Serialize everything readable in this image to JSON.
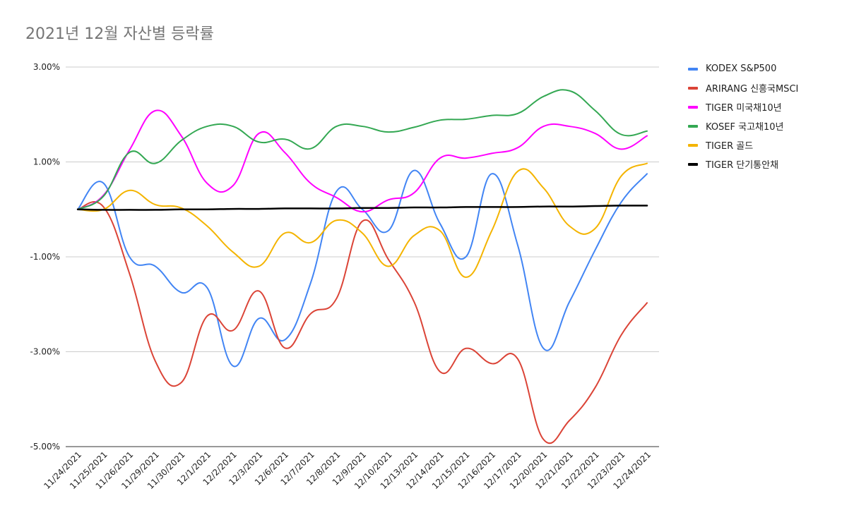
{
  "title": "2021년 12월 자산별 등락률",
  "chart_data": {
    "type": "line",
    "title": "2021년 12월 자산별 등락률",
    "xlabel": "",
    "ylabel": "",
    "ylim": [
      -5,
      3
    ],
    "yticks": [
      3,
      1,
      -1,
      -3,
      -5
    ],
    "ytick_labels": [
      "3.00%",
      "1.00%",
      "-1.00%",
      "-3.00%",
      "-5.00%"
    ],
    "grid": true,
    "legend_position": "right",
    "categories": [
      "11/24/2021",
      "11/25/2021",
      "11/26/2021",
      "11/29/2021",
      "11/30/2021",
      "12/1/2021",
      "12/2/2021",
      "12/3/2021",
      "12/6/2021",
      "12/7/2021",
      "12/8/2021",
      "12/9/2021",
      "12/10/2021",
      "12/13/2021",
      "12/14/2021",
      "12/15/2021",
      "12/16/2021",
      "12/17/2021",
      "12/20/2021",
      "12/21/2021",
      "12/22/2021",
      "12/23/2021",
      "12/24/2021"
    ],
    "series": [
      {
        "name": "KODEX S&P500",
        "color": "#4285f4",
        "values": [
          0,
          0.55,
          -1.0,
          -1.2,
          -1.75,
          -1.65,
          -3.3,
          -2.3,
          -2.75,
          -1.55,
          0.38,
          0.0,
          -0.45,
          0.82,
          -0.3,
          -1.0,
          0.75,
          -0.75,
          -2.93,
          -1.95,
          -0.85,
          0.15,
          0.75
        ]
      },
      {
        "name": "ARIRANG 신흥국MSCI",
        "color": "#db4437",
        "values": [
          0,
          0.05,
          -1.35,
          -3.2,
          -3.65,
          -2.25,
          -2.55,
          -1.72,
          -2.92,
          -2.2,
          -1.88,
          -0.25,
          -1.05,
          -1.95,
          -3.42,
          -2.93,
          -3.25,
          -3.15,
          -4.85,
          -4.45,
          -3.75,
          -2.65,
          -1.97
        ]
      },
      {
        "name": "TIGER 미국채10년",
        "color": "#ff00ff",
        "values": [
          0,
          0.3,
          1.25,
          2.08,
          1.55,
          0.55,
          0.5,
          1.6,
          1.2,
          0.55,
          0.25,
          -0.05,
          0.2,
          0.35,
          1.08,
          1.08,
          1.18,
          1.3,
          1.75,
          1.75,
          1.6,
          1.27,
          1.55
        ]
      },
      {
        "name": "KOSEF 국고채10년",
        "color": "#34a853",
        "values": [
          0,
          0.28,
          1.2,
          0.97,
          1.45,
          1.75,
          1.75,
          1.42,
          1.48,
          1.28,
          1.75,
          1.75,
          1.63,
          1.73,
          1.88,
          1.9,
          1.98,
          2.02,
          2.38,
          2.5,
          2.08,
          1.58,
          1.65
        ]
      },
      {
        "name": "TIGER 골드",
        "color": "#f4b400",
        "values": [
          0,
          0.0,
          0.4,
          0.1,
          0.03,
          -0.35,
          -0.9,
          -1.2,
          -0.5,
          -0.7,
          -0.23,
          -0.5,
          -1.2,
          -0.55,
          -0.45,
          -1.43,
          -0.45,
          0.8,
          0.45,
          -0.35,
          -0.4,
          0.7,
          0.97
        ]
      },
      {
        "name": "TIGER 단기통안채",
        "color": "#000000",
        "values": [
          0,
          -0.01,
          -0.01,
          -0.01,
          0.0,
          0.0,
          0.01,
          0.01,
          0.02,
          0.02,
          0.02,
          0.03,
          0.03,
          0.04,
          0.04,
          0.05,
          0.05,
          0.05,
          0.06,
          0.06,
          0.07,
          0.08,
          0.08
        ]
      }
    ]
  }
}
